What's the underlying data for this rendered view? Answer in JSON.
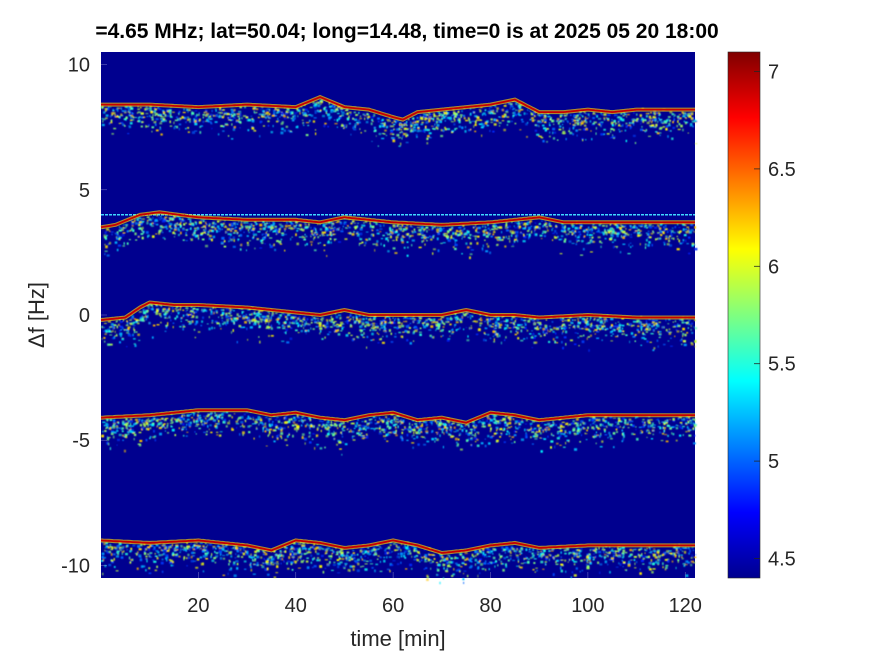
{
  "chart_data": {
    "type": "heatmap",
    "title": "=4.65 MHz;  lat=50.04; long=14.48, time=0 is at 2025 05 20 18:00",
    "xlabel": "time [min]",
    "ylabel": "Δf [Hz]",
    "xlim": [
      0,
      122
    ],
    "ylim": [
      -10.5,
      10.5
    ],
    "xticks": [
      20,
      40,
      60,
      80,
      100,
      120
    ],
    "xtick_labels": [
      "20",
      "40",
      "60",
      "80",
      "100",
      "120"
    ],
    "yticks": [
      10,
      5,
      0,
      -5,
      -10
    ],
    "ytick_labels": [
      "10",
      "5",
      "0",
      "-5",
      "-10"
    ],
    "colorbar": {
      "colormap": "jet",
      "clim": [
        4.4,
        7.1
      ],
      "ticks": [
        7,
        6.5,
        6,
        5.5,
        5,
        4.5
      ],
      "tick_labels": [
        "7",
        "6.5",
        "6",
        "5.5",
        "5",
        "4.5"
      ]
    },
    "background_color": "#00008f",
    "reference_line": {
      "y": 4.0,
      "color": "#3fd8ff"
    },
    "series": [
      {
        "baseline": 8.4,
        "trace_x": [
          0,
          10,
          20,
          30,
          40,
          45,
          50,
          55,
          60,
          62,
          65,
          70,
          75,
          80,
          85,
          90,
          95,
          100,
          105,
          110,
          115,
          120
        ],
        "trace_y": [
          8.4,
          8.4,
          8.3,
          8.4,
          8.3,
          8.7,
          8.3,
          8.2,
          7.9,
          7.8,
          8.1,
          8.2,
          8.3,
          8.4,
          8.6,
          8.1,
          8.1,
          8.2,
          8.1,
          8.2,
          8.2,
          8.2
        ]
      },
      {
        "baseline": 3.8,
        "trace_x": [
          0,
          3,
          8,
          12,
          20,
          30,
          40,
          45,
          50,
          55,
          60,
          70,
          80,
          85,
          90,
          95,
          100,
          110,
          120
        ],
        "trace_y": [
          3.5,
          3.6,
          4.0,
          4.1,
          3.9,
          3.8,
          3.8,
          3.7,
          3.9,
          3.8,
          3.7,
          3.6,
          3.7,
          3.8,
          3.9,
          3.7,
          3.7,
          3.7,
          3.7
        ]
      },
      {
        "baseline": 0.0,
        "trace_x": [
          0,
          5,
          8,
          10,
          15,
          20,
          30,
          40,
          45,
          50,
          55,
          60,
          70,
          75,
          80,
          85,
          90,
          100,
          110,
          120
        ],
        "trace_y": [
          -0.2,
          -0.1,
          0.3,
          0.5,
          0.4,
          0.4,
          0.3,
          0.1,
          0.0,
          0.2,
          0.0,
          0.0,
          0.0,
          0.2,
          0.0,
          0.0,
          -0.1,
          0.0,
          -0.1,
          -0.1
        ]
      },
      {
        "baseline": -4.0,
        "trace_x": [
          0,
          10,
          20,
          30,
          35,
          40,
          45,
          50,
          55,
          60,
          65,
          70,
          75,
          80,
          85,
          90,
          95,
          100,
          110,
          120
        ],
        "trace_y": [
          -4.1,
          -4.0,
          -3.8,
          -3.8,
          -4.0,
          -3.9,
          -4.1,
          -4.2,
          -4.0,
          -3.9,
          -4.2,
          -4.1,
          -4.3,
          -3.9,
          -4.0,
          -4.2,
          -4.1,
          -4.0,
          -4.0,
          -4.0
        ]
      },
      {
        "baseline": -9.0,
        "trace_x": [
          0,
          10,
          20,
          30,
          35,
          40,
          45,
          50,
          55,
          60,
          65,
          70,
          75,
          80,
          85,
          90,
          100,
          110,
          120
        ],
        "trace_y": [
          -9.0,
          -9.1,
          -9.0,
          -9.2,
          -9.4,
          -9.0,
          -9.1,
          -9.3,
          -9.2,
          -9.0,
          -9.2,
          -9.5,
          -9.4,
          -9.2,
          -9.1,
          -9.3,
          -9.2,
          -9.2,
          -9.2
        ]
      }
    ]
  }
}
